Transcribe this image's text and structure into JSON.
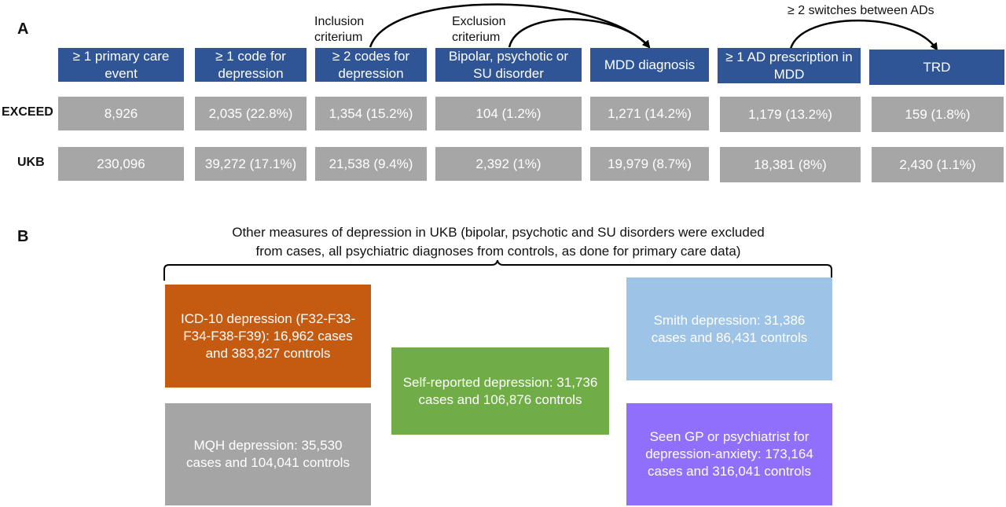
{
  "panels": {
    "a_label": "A",
    "b_label": "B"
  },
  "colors": {
    "stage_fill": "#2f5597",
    "cell_fill": "#a6a6a6",
    "icd10": "#c55a11",
    "mqh": "#a5a5a5",
    "self_reported": "#70ad47",
    "smith": "#9dc3e6",
    "seen_gp": "#8f6ffb"
  },
  "stages": [
    "≥ 1 primary care event",
    "≥ 1 code for depression",
    "≥ 2 codes for depression",
    "Bipolar, psychotic or SU disorder",
    "MDD diagnosis",
    "≥ 1 AD prescription in MDD",
    "TRD"
  ],
  "annotations": {
    "inclusion": "Inclusion criterium",
    "exclusion": "Exclusion criterium",
    "switches": "≥ 2 switches between ADs"
  },
  "rows": [
    {
      "label": "EXCEED",
      "cells": [
        "8,926",
        "2,035 (22.8%)",
        "1,354 (15.2%)",
        "104 (1.2%)",
        "1,271 (14.2%)",
        "1,179 (13.2%)",
        "159 (1.8%)"
      ]
    },
    {
      "label": "UKB",
      "cells": [
        "230,096",
        "39,272 (17.1%)",
        "21,538 (9.4%)",
        "2,392 (1%)",
        "19,979 (8.7%)",
        "18,381 (8%)",
        "2,430 (1.1%)"
      ]
    }
  ],
  "panel_b": {
    "heading_line1": "Other measures of depression in UKB (bipolar, psychotic and SU disorders were excluded",
    "heading_line2": "from cases, all psychiatric diagnoses from controls, as done for primary care data)",
    "icd10": "ICD-10 depression (F32-F33-F34-F38-F39): 16,962 cases and 383,827 controls",
    "mqh": "MQH depression: 35,530 cases and 104,041 controls",
    "self_reported": "Self-reported depression: 31,736 cases and 106,876 controls",
    "smith": "Smith depression: 31,386 cases and 86,431 controls",
    "seen_gp": "Seen GP or psychiatrist for depression-anxiety: 173,164 cases and 316,041 controls"
  }
}
